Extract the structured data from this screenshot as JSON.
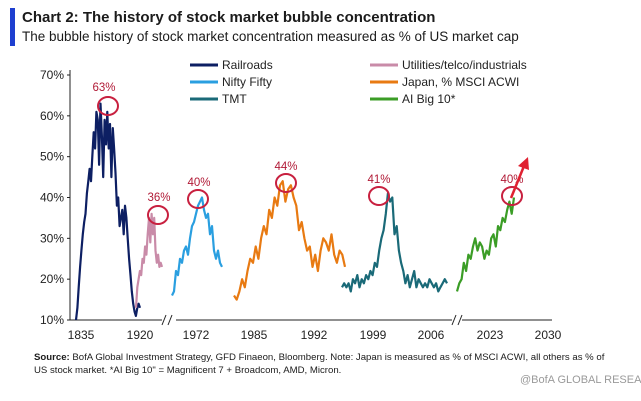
{
  "title": "Chart 2: The history of stock market bubble concentration",
  "subtitle": "The bubble history of stock market concentration measured as % of US market cap",
  "source_label": "Source:",
  "source_text": " BofA Global Investment Strategy, GFD Finaeon, Bloomberg. Note: Japan is measured as % of MSCI ACWI, all others as % of US stock market. *AI Big 10\" = Magnificent 7 + Broadcom, AMD, Micron.",
  "watermark": "@BofA GLOBAL RESEARCH",
  "colors": {
    "accent": "#1e3fd0",
    "railroads": "#0d1f63",
    "utilities": "#c98ba8",
    "nifty_fifty": "#2a9fe0",
    "japan": "#e87a12",
    "tmt": "#1a6a78",
    "ai_big_10": "#3b9d26",
    "peak_circle": "#c8203f",
    "arrow": "#e02232"
  },
  "chart_data": {
    "type": "line",
    "title": "Chart 2: The history of stock market bubble concentration",
    "subtitle": "The bubble history of stock market concentration measured as % of US market cap",
    "xlabel": "",
    "ylabel": "",
    "ylim": [
      10,
      70
    ],
    "y_ticks": [
      "10%",
      "20%",
      "30%",
      "40%",
      "50%",
      "60%",
      "70%"
    ],
    "x_ticks": [
      "1835",
      "1920",
      "1972",
      "1985",
      "1992",
      "1999",
      "2006",
      "2023",
      "2030"
    ],
    "x_axis": "broken timeline (axis breaks shown between 1920 and 1972, and between 2006 and 2023)",
    "grid": false,
    "legend_position": "top",
    "legend": [
      "Railroads",
      "Utilities/telco/industrials",
      "Nifty Fifty",
      "Japan, % MSCI ACWI",
      "TMT",
      "AI Big 10*"
    ],
    "series": [
      {
        "name": "Railroads",
        "color": "#0d1f63",
        "values": [
          10,
          13,
          18,
          23,
          27,
          31,
          34,
          36,
          41,
          44,
          47,
          44,
          50,
          56,
          52,
          61,
          59,
          48,
          63,
          55,
          45,
          59,
          53,
          61,
          52,
          58,
          45,
          57,
          52,
          46,
          38,
          40,
          33,
          35,
          37,
          31,
          38,
          35,
          30,
          25,
          21,
          17,
          14,
          12,
          11,
          13,
          14,
          13
        ]
      },
      {
        "name": "Utilities/telco/industrials",
        "color": "#c98ba8",
        "values": [
          13,
          18,
          20,
          22,
          21,
          25,
          24,
          28,
          26,
          31,
          35,
          29,
          36,
          31,
          35,
          27,
          24,
          26,
          23,
          24,
          23
        ]
      },
      {
        "name": "Nifty Fifty",
        "color": "#2a9fe0",
        "values": [
          16,
          17,
          22,
          21,
          25,
          24,
          27,
          28,
          26,
          30,
          33,
          34,
          36,
          38,
          39,
          40,
          37,
          35,
          36,
          31,
          33,
          27,
          25,
          27,
          24,
          23
        ]
      },
      {
        "name": "Japan, % MSCI ACWI",
        "color": "#e87a12",
        "values": [
          16,
          15,
          17,
          20,
          18,
          22,
          25,
          24,
          28,
          25,
          30,
          33,
          31,
          37,
          35,
          40,
          38,
          43,
          44,
          39,
          42,
          43,
          40,
          38,
          32,
          34,
          30,
          27,
          28,
          23,
          26,
          22,
          27,
          30,
          29,
          27,
          31,
          26,
          24,
          27,
          26,
          23
        ]
      },
      {
        "name": "TMT",
        "color": "#1a6a78",
        "values": [
          18,
          19,
          18,
          19,
          17,
          20,
          19,
          21,
          18,
          20,
          19,
          21,
          20,
          22,
          21,
          24,
          23,
          27,
          30,
          32,
          36,
          41,
          39,
          40,
          31,
          33,
          27,
          24,
          22,
          19,
          21,
          18,
          20,
          22,
          18,
          20,
          19,
          18,
          19,
          18,
          20,
          19,
          18,
          19,
          17,
          18,
          19,
          20,
          19
        ]
      },
      {
        "name": "AI Big 10*",
        "color": "#3b9d26",
        "values": [
          17,
          19,
          20,
          24,
          22,
          26,
          25,
          28,
          30,
          27,
          29,
          28,
          25,
          27,
          26,
          30,
          31,
          28,
          33,
          32,
          35,
          34,
          37,
          39,
          36,
          40
        ]
      }
    ],
    "annotations": [
      "63%",
      "36%",
      "40%",
      "44%",
      "41%",
      "40%"
    ]
  }
}
